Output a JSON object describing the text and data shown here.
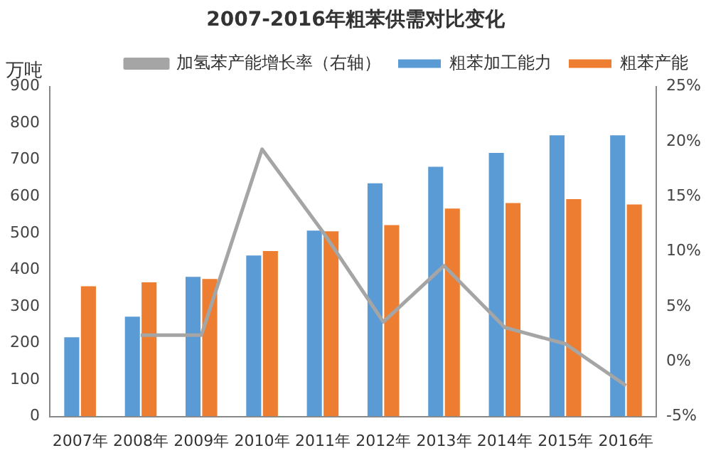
{
  "chart_data": {
    "type": "bar",
    "title": "2007-2016年粗苯供需对比变化",
    "ylabel": "万吨",
    "categories": [
      "2007年",
      "2008年",
      "2009年",
      "2010年",
      "2011年",
      "2012年",
      "2013年",
      "2014年",
      "2015年",
      "2016年"
    ],
    "series": [
      {
        "name": "粗苯加工能力",
        "color": "#5b9bd5",
        "values": [
          216,
          272,
          381,
          439,
          507,
          636,
          681,
          719,
          767,
          767
        ]
      },
      {
        "name": "粗苯产能",
        "color": "#ed7d31",
        "values": [
          355,
          366,
          375,
          451,
          505,
          522,
          567,
          582,
          593,
          578
        ]
      },
      {
        "name": "加氢苯产能增长率（右轴）",
        "type": "line",
        "axis": "y2",
        "color": "#a5a5a5",
        "values": [
          null,
          2.4,
          2.4,
          19.3,
          11.8,
          3.6,
          8.7,
          3.1,
          1.6,
          -2.2
        ]
      }
    ],
    "ylim": [
      0,
      900
    ],
    "yticks": [
      0,
      100,
      200,
      300,
      400,
      500,
      600,
      700,
      800,
      900
    ],
    "y2lim": [
      -5,
      25
    ],
    "y2ticks": [
      {
        "value": -5,
        "label": "-5%"
      },
      {
        "value": 0,
        "label": "0%"
      },
      {
        "value": 5,
        "label": "5%"
      },
      {
        "value": 10,
        "label": "10%"
      },
      {
        "value": 15,
        "label": "15%"
      },
      {
        "value": 20,
        "label": "20%"
      },
      {
        "value": 25,
        "label": "25%"
      }
    ],
    "grid": false,
    "legend": "top",
    "marker": "none"
  }
}
